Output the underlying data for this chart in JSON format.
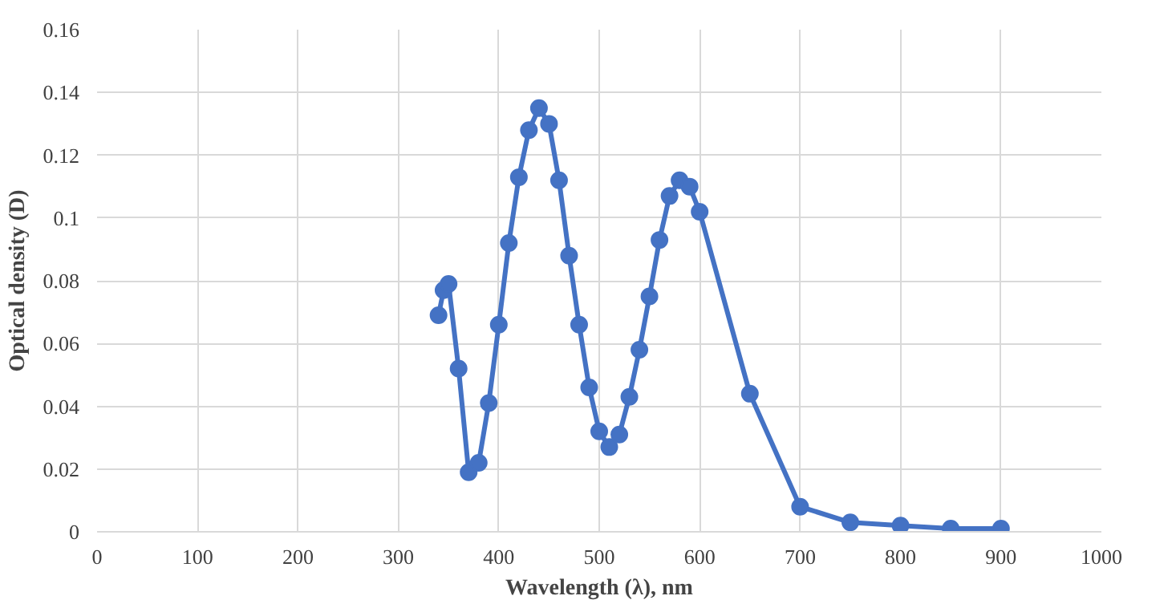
{
  "chart_data": {
    "type": "line",
    "xlabel": "Wavelength (λ), nm",
    "ylabel": "Optical density (D)",
    "x": [
      340,
      345,
      350,
      360,
      370,
      380,
      390,
      400,
      410,
      420,
      430,
      440,
      450,
      460,
      470,
      480,
      490,
      500,
      510,
      520,
      530,
      540,
      550,
      560,
      570,
      580,
      590,
      600,
      650,
      700,
      750,
      800,
      850,
      900
    ],
    "series": [
      {
        "color": "#4472c4",
        "values": [
          0.069,
          0.077,
          0.079,
          0.052,
          0.019,
          0.022,
          0.041,
          0.066,
          0.092,
          0.113,
          0.128,
          0.135,
          0.13,
          0.112,
          0.088,
          0.066,
          0.046,
          0.032,
          0.027,
          0.031,
          0.043,
          0.058,
          0.075,
          0.093,
          0.107,
          0.112,
          0.11,
          0.102,
          0.044,
          0.008,
          0.003,
          0.002,
          0.001,
          0.001
        ]
      }
    ],
    "xlim": [
      0,
      1000
    ],
    "ylim": [
      0,
      0.16
    ],
    "xticks": [
      0,
      100,
      200,
      300,
      400,
      500,
      600,
      700,
      800,
      900,
      1000
    ],
    "yticks": [
      0,
      0.02,
      0.04,
      0.06,
      0.08,
      0.1,
      0.12,
      0.14,
      0.16
    ],
    "grid": true,
    "marker": "circle",
    "line_style": "solid"
  }
}
